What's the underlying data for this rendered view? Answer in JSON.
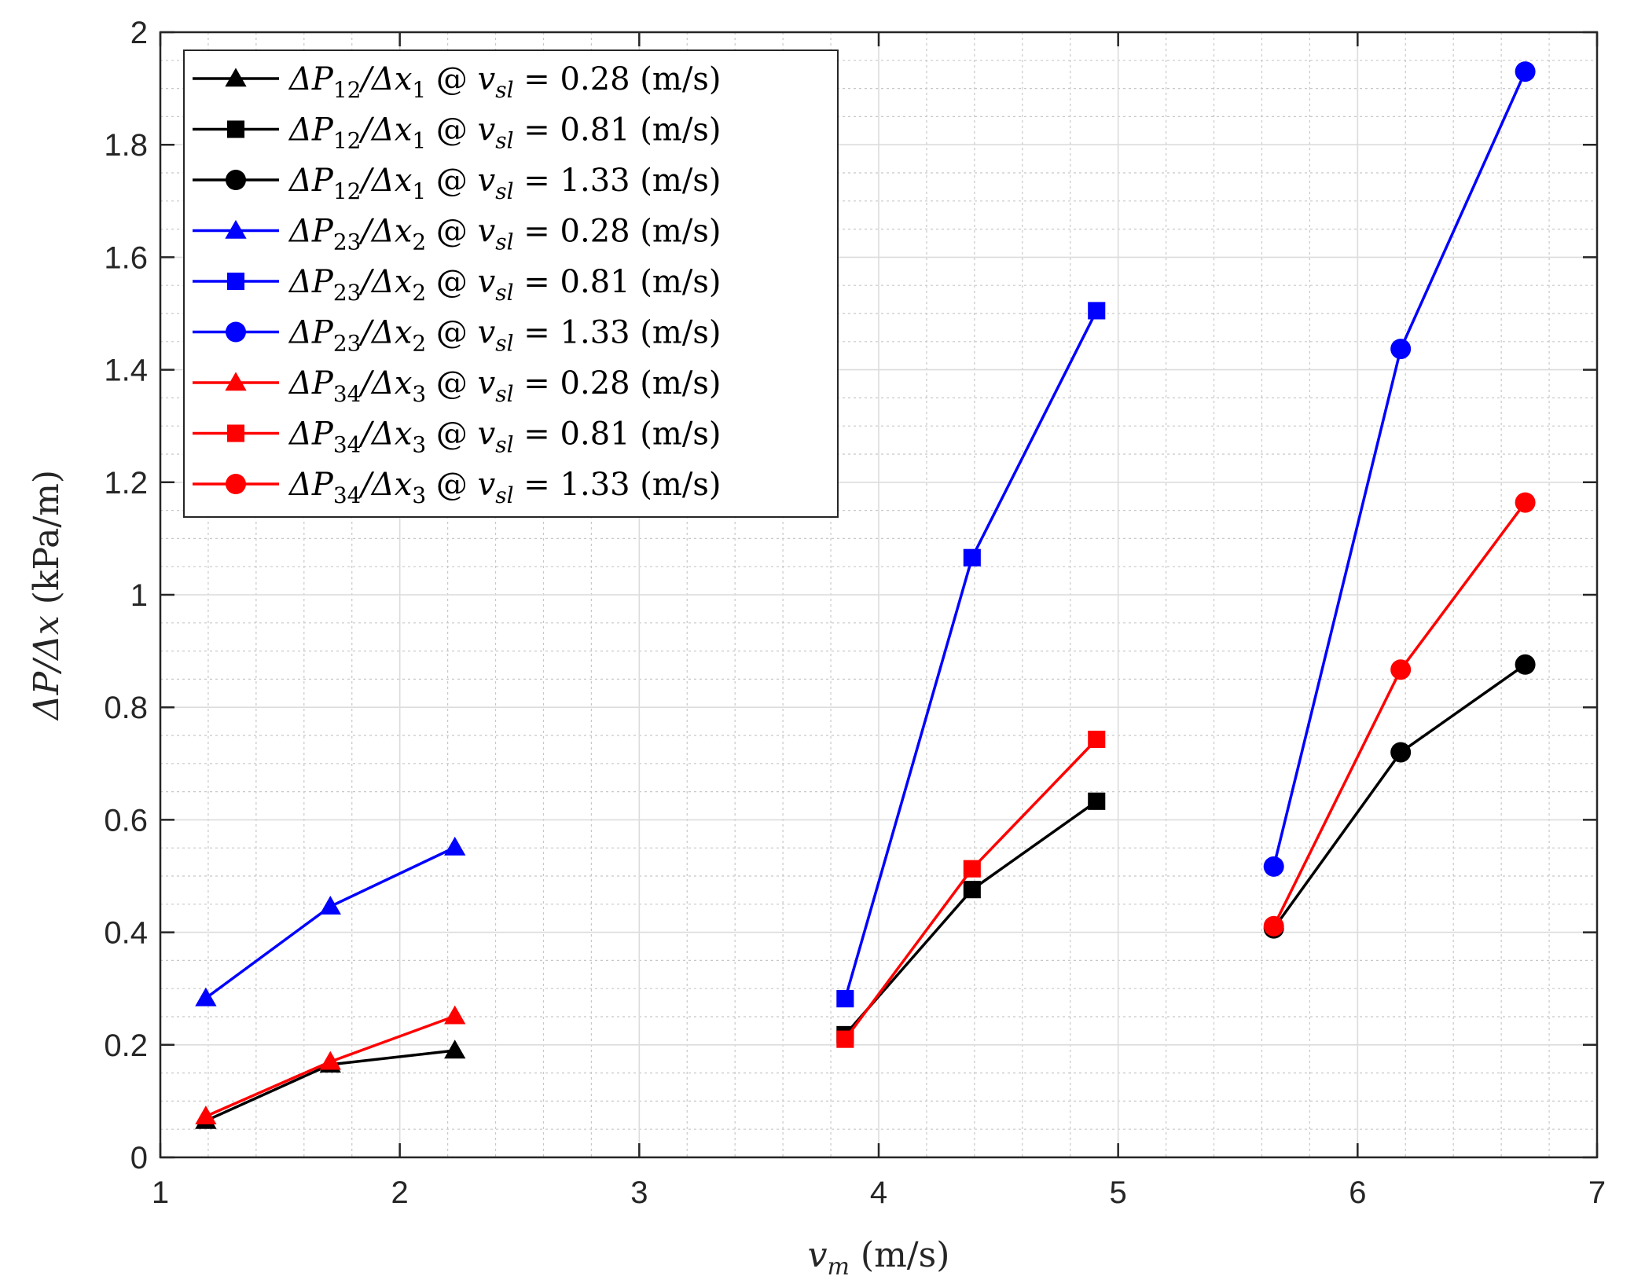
{
  "chart_data": {
    "type": "line",
    "xlabel": "v_m (m/s)",
    "ylabel": "ΔP/Δx (kPa/m)",
    "xlim": [
      1,
      7
    ],
    "ylim": [
      0,
      2
    ],
    "xticks": [
      1,
      2,
      3,
      4,
      5,
      6,
      7
    ],
    "yticks": [
      0,
      0.2,
      0.4,
      0.6,
      0.8,
      1,
      1.2,
      1.4,
      1.6,
      1.8,
      2
    ],
    "xtick_labels": [
      "1",
      "2",
      "3",
      "4",
      "5",
      "6",
      "7"
    ],
    "ytick_labels": [
      "0",
      "0.2",
      "0.4",
      "0.6",
      "0.8",
      "1",
      "1.2",
      "1.4",
      "1.6",
      "1.8",
      "2"
    ],
    "grid": true,
    "minor_grid": true,
    "legend_position": "top-left",
    "series": [
      {
        "name": "ΔP12/Δx1 @ vsl = 0.28 (m/s)",
        "color": "#000000",
        "marker": "triangle",
        "x": [
          1.19,
          1.71,
          2.23
        ],
        "y": [
          0.065,
          0.165,
          0.19
        ]
      },
      {
        "name": "ΔP12/Δx1 @ vsl = 0.81 (m/s)",
        "color": "#000000",
        "marker": "square",
        "x": [
          3.86,
          4.39,
          4.91
        ],
        "y": [
          0.218,
          0.476,
          0.633
        ]
      },
      {
        "name": "ΔP12/Δx1 @ vsl = 1.33 (m/s)",
        "color": "#000000",
        "marker": "circle",
        "x": [
          5.65,
          6.18,
          6.7
        ],
        "y": [
          0.407,
          0.72,
          0.876
        ]
      },
      {
        "name": "ΔP23/Δx2 @ vsl = 0.28 (m/s)",
        "color": "#0000ff",
        "marker": "triangle",
        "x": [
          1.19,
          1.71,
          2.23
        ],
        "y": [
          0.283,
          0.446,
          0.551
        ]
      },
      {
        "name": "ΔP23/Δx2 @ vsl = 0.81 (m/s)",
        "color": "#0000ff",
        "marker": "square",
        "x": [
          3.86,
          4.39,
          4.91
        ],
        "y": [
          0.282,
          1.066,
          1.505
        ]
      },
      {
        "name": "ΔP23/Δx2 @ vsl = 1.33 (m/s)",
        "color": "#0000ff",
        "marker": "circle",
        "x": [
          5.65,
          6.18,
          6.7
        ],
        "y": [
          0.517,
          1.437,
          1.93
        ]
      },
      {
        "name": "ΔP34/Δx3 @ vsl = 0.28 (m/s)",
        "color": "#ff0000",
        "marker": "triangle",
        "x": [
          1.19,
          1.71,
          2.23
        ],
        "y": [
          0.073,
          0.17,
          0.251
        ]
      },
      {
        "name": "ΔP34/Δx3 @ vsl = 0.81 (m/s)",
        "color": "#ff0000",
        "marker": "square",
        "x": [
          3.86,
          4.39,
          4.91
        ],
        "y": [
          0.21,
          0.513,
          0.743
        ]
      },
      {
        "name": "ΔP34/Δx3 @ vsl = 1.33 (m/s)",
        "color": "#ff0000",
        "marker": "circle",
        "x": [
          5.65,
          6.18,
          6.7
        ],
        "y": [
          0.411,
          0.867,
          1.164
        ]
      }
    ],
    "legend": [
      {
        "dp": "ΔP",
        "dp_sub": "12",
        "dx": "/Δx",
        "dx_sub": "1",
        "at": " @ ",
        "v": "v",
        "v_sub": "sl",
        "eq": " = 0.28 (m/s)"
      },
      {
        "dp": "ΔP",
        "dp_sub": "12",
        "dx": "/Δx",
        "dx_sub": "1",
        "at": " @ ",
        "v": "v",
        "v_sub": "sl",
        "eq": " = 0.81 (m/s)"
      },
      {
        "dp": "ΔP",
        "dp_sub": "12",
        "dx": "/Δx",
        "dx_sub": "1",
        "at": " @ ",
        "v": "v",
        "v_sub": "sl",
        "eq": " = 1.33 (m/s)"
      },
      {
        "dp": "ΔP",
        "dp_sub": "23",
        "dx": "/Δx",
        "dx_sub": "2",
        "at": " @ ",
        "v": "v",
        "v_sub": "sl",
        "eq": " = 0.28 (m/s)"
      },
      {
        "dp": "ΔP",
        "dp_sub": "23",
        "dx": "/Δx",
        "dx_sub": "2",
        "at": " @ ",
        "v": "v",
        "v_sub": "sl",
        "eq": " = 0.81 (m/s)"
      },
      {
        "dp": "ΔP",
        "dp_sub": "23",
        "dx": "/Δx",
        "dx_sub": "2",
        "at": " @ ",
        "v": "v",
        "v_sub": "sl",
        "eq": " = 1.33 (m/s)"
      },
      {
        "dp": "ΔP",
        "dp_sub": "34",
        "dx": "/Δx",
        "dx_sub": "3",
        "at": " @ ",
        "v": "v",
        "v_sub": "sl",
        "eq": " = 0.28 (m/s)"
      },
      {
        "dp": "ΔP",
        "dp_sub": "34",
        "dx": "/Δx",
        "dx_sub": "3",
        "at": " @ ",
        "v": "v",
        "v_sub": "sl",
        "eq": " = 0.81 (m/s)"
      },
      {
        "dp": "ΔP",
        "dp_sub": "34",
        "dx": "/Δx",
        "dx_sub": "3",
        "at": " @ ",
        "v": "v",
        "v_sub": "sl",
        "eq": " = 1.33 (m/s)"
      }
    ],
    "xlabel_parts": {
      "var": "v",
      "sub": "m",
      "unit": " (m/s)"
    },
    "ylabel_parts": {
      "var": "ΔP/Δx",
      "unit": " (kPa/m)"
    }
  }
}
